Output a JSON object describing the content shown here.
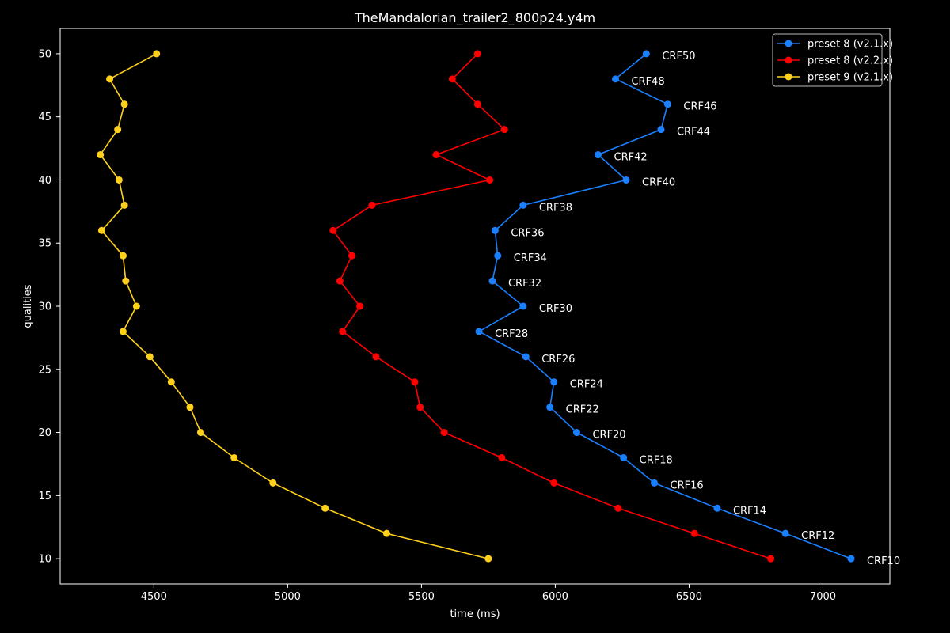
{
  "chart_data": {
    "type": "line",
    "title": "TheMandalorian_trailer2_800p24.y4m",
    "xlabel": "time (ms)",
    "ylabel": "qualities",
    "xlim": [
      4150,
      7250
    ],
    "ylim": [
      8,
      52
    ],
    "xticks": [
      4500,
      5000,
      5500,
      6000,
      6500,
      7000
    ],
    "yticks": [
      10,
      15,
      20,
      25,
      30,
      35,
      40,
      45,
      50
    ],
    "legend_position": "top-right",
    "grid": false,
    "series": [
      {
        "name": "preset 8 (v2.1.x)",
        "color": "#1a80ff",
        "y": [
          50,
          48,
          46,
          44,
          42,
          40,
          38,
          36,
          34,
          32,
          30,
          28,
          26,
          24,
          22,
          20,
          18,
          16,
          14,
          12,
          10
        ],
        "x": [
          6340,
          6225,
          6420,
          6395,
          6160,
          6265,
          5880,
          5775,
          5785,
          5765,
          5880,
          5715,
          5890,
          5995,
          5980,
          6080,
          6255,
          6370,
          6605,
          6860,
          7105
        ],
        "point_labels": [
          "CRF50",
          "CRF48",
          "CRF46",
          "CRF44",
          "CRF42",
          "CRF40",
          "CRF38",
          "CRF36",
          "CRF34",
          "CRF32",
          "CRF30",
          "CRF28",
          "CRF26",
          "CRF24",
          "CRF22",
          "CRF20",
          "CRF18",
          "CRF16",
          "CRF14",
          "CRF12",
          "CRF10"
        ]
      },
      {
        "name": "preset 8 (v2.2.x)",
        "color": "#ff0000",
        "y": [
          50,
          48,
          46,
          44,
          42,
          40,
          38,
          36,
          34,
          32,
          30,
          28,
          26,
          24,
          22,
          20,
          18,
          16,
          14,
          12,
          10
        ],
        "x": [
          5710,
          5615,
          5710,
          5810,
          5555,
          5755,
          5315,
          5170,
          5240,
          5195,
          5270,
          5205,
          5330,
          5475,
          5495,
          5585,
          5800,
          5995,
          6235,
          6520,
          6805
        ]
      },
      {
        "name": "preset 9 (v2.1.x)",
        "color": "#ffd11a",
        "y": [
          50,
          48,
          46,
          44,
          42,
          40,
          38,
          36,
          34,
          32,
          30,
          28,
          26,
          24,
          22,
          20,
          18,
          16,
          14,
          12,
          10
        ],
        "x": [
          4510,
          4335,
          4390,
          4365,
          4300,
          4370,
          4390,
          4305,
          4385,
          4395,
          4435,
          4385,
          4485,
          4565,
          4635,
          4675,
          4800,
          4945,
          5140,
          5370,
          5750
        ]
      }
    ]
  }
}
